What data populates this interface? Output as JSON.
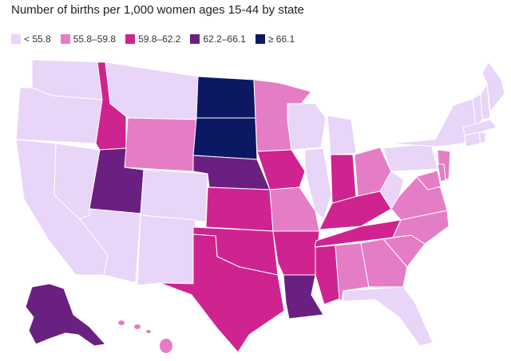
{
  "title": "Number of births per 1,000 women ages 15-44 by state",
  "legend": [
    {
      "label": "< 55.8",
      "color": "#e9d5f8"
    },
    {
      "label": "55.8–59.8",
      "color": "#e57cc6"
    },
    {
      "label": "59.8–62.2",
      "color": "#cf2390"
    },
    {
      "label": "62.2–66.1",
      "color": "#6a2080"
    },
    {
      "label": "≥ 66.1",
      "color": "#0c1862"
    }
  ],
  "states": [
    {
      "id": "WA",
      "bin": 0
    },
    {
      "id": "OR",
      "bin": 0
    },
    {
      "id": "CA",
      "bin": 0
    },
    {
      "id": "NV",
      "bin": 0
    },
    {
      "id": "ID",
      "bin": 2
    },
    {
      "id": "MT",
      "bin": 0
    },
    {
      "id": "WY",
      "bin": 1
    },
    {
      "id": "UT",
      "bin": 3
    },
    {
      "id": "CO",
      "bin": 0
    },
    {
      "id": "AZ",
      "bin": 0
    },
    {
      "id": "NM",
      "bin": 0
    },
    {
      "id": "ND",
      "bin": 4
    },
    {
      "id": "SD",
      "bin": 4
    },
    {
      "id": "NE",
      "bin": 3
    },
    {
      "id": "KS",
      "bin": 2
    },
    {
      "id": "OK",
      "bin": 2
    },
    {
      "id": "TX",
      "bin": 2
    },
    {
      "id": "MN",
      "bin": 1
    },
    {
      "id": "IA",
      "bin": 2
    },
    {
      "id": "MO",
      "bin": 1
    },
    {
      "id": "AR",
      "bin": 2
    },
    {
      "id": "LA",
      "bin": 3
    },
    {
      "id": "WI",
      "bin": 0
    },
    {
      "id": "IL",
      "bin": 0
    },
    {
      "id": "MI",
      "bin": 0
    },
    {
      "id": "IN",
      "bin": 2
    },
    {
      "id": "OH",
      "bin": 1
    },
    {
      "id": "KY",
      "bin": 2
    },
    {
      "id": "TN",
      "bin": 2
    },
    {
      "id": "MS",
      "bin": 2
    },
    {
      "id": "AL",
      "bin": 1
    },
    {
      "id": "GA",
      "bin": 1
    },
    {
      "id": "FL",
      "bin": 0
    },
    {
      "id": "SC",
      "bin": 1
    },
    {
      "id": "NC",
      "bin": 1
    },
    {
      "id": "VA",
      "bin": 1
    },
    {
      "id": "WV",
      "bin": 0
    },
    {
      "id": "PA",
      "bin": 0
    },
    {
      "id": "NY",
      "bin": 0
    },
    {
      "id": "NJ",
      "bin": 1
    },
    {
      "id": "MD",
      "bin": 1
    },
    {
      "id": "DE",
      "bin": 1
    },
    {
      "id": "VT",
      "bin": 0
    },
    {
      "id": "NH",
      "bin": 0
    },
    {
      "id": "ME",
      "bin": 0
    },
    {
      "id": "MA",
      "bin": 0
    },
    {
      "id": "CT",
      "bin": 0
    },
    {
      "id": "RI",
      "bin": 0
    },
    {
      "id": "AK",
      "bin": 3
    },
    {
      "id": "HI",
      "bin": 1
    }
  ]
}
